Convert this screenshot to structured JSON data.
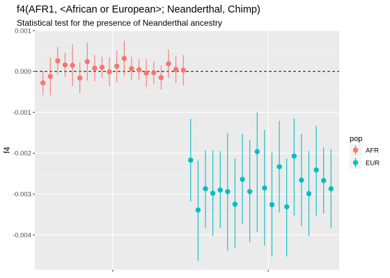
{
  "chart_data": {
    "type": "scatter",
    "title": "f4(AFR1, <African or European>; Neanderthal, Chimp)",
    "subtitle": "Statistical test for the presence of Neanderthal ancestry",
    "xlabel": "",
    "ylabel": "f4",
    "ylim": [
      -0.00485,
      0.001
    ],
    "y_ticks": [
      0.001,
      0.0,
      -0.001,
      -0.002,
      -0.003,
      -0.004
    ],
    "y_tick_labels": [
      "0.001",
      "0.000",
      "-0.001",
      "-0.002",
      "-0.003",
      "-0.004"
    ],
    "reference_line": {
      "y": 0,
      "style": "dashed"
    },
    "grid": true,
    "legend": {
      "title": "pop",
      "position": "right"
    },
    "series": [
      {
        "name": "AFR",
        "color": "#F8766D",
        "points": [
          {
            "y": -0.00028,
            "ymin": -0.00058,
            "ymax": 2e-05
          },
          {
            "y": -0.00012,
            "ymin": -0.00058,
            "ymax": 0.00034
          },
          {
            "y": 0.00026,
            "ymin": -8e-05,
            "ymax": 0.0006
          },
          {
            "y": 0.00016,
            "ymin": -0.00014,
            "ymax": 0.00046
          },
          {
            "y": 0.00015,
            "ymin": -0.00036,
            "ymax": 0.00066
          },
          {
            "y": -0.00016,
            "ymin": -0.00054,
            "ymax": 0.00022
          },
          {
            "y": 0.00024,
            "ymin": -0.00022,
            "ymax": 0.0007
          },
          {
            "y": 8e-05,
            "ymin": -0.00024,
            "ymax": 0.0004
          },
          {
            "y": 0.0001,
            "ymin": -0.00016,
            "ymax": 0.00036
          },
          {
            "y": -1e-05,
            "ymin": -0.00036,
            "ymax": 0.00034
          },
          {
            "y": 0.00013,
            "ymin": -0.00026,
            "ymax": 0.00052
          },
          {
            "y": 0.00032,
            "ymin": -0.00011,
            "ymax": 0.00075
          },
          {
            "y": 7e-05,
            "ymin": -0.00022,
            "ymax": 0.00036
          },
          {
            "y": 4e-05,
            "ymin": -0.00022,
            "ymax": 0.0003
          },
          {
            "y": -4e-05,
            "ymin": -0.00038,
            "ymax": 0.0003
          },
          {
            "y": -3e-05,
            "ymin": -0.0003,
            "ymax": 0.00024
          },
          {
            "y": -0.00015,
            "ymin": -0.00044,
            "ymax": 0.00014
          },
          {
            "y": 0.00019,
            "ymin": -0.00016,
            "ymax": 0.00054
          },
          {
            "y": 5e-05,
            "ymin": -0.00028,
            "ymax": 0.00038
          },
          {
            "y": 3e-05,
            "ymin": -0.00034,
            "ymax": 0.0004
          }
        ]
      },
      {
        "name": "EUR",
        "color": "#00BFC4",
        "points": [
          {
            "y": -0.00217,
            "ymin": -0.00318,
            "ymax": -0.00116
          },
          {
            "y": -0.00339,
            "ymin": -0.00463,
            "ymax": -0.00218
          },
          {
            "y": -0.00287,
            "ymin": -0.00383,
            "ymax": -0.00193
          },
          {
            "y": -0.00298,
            "ymin": -0.00403,
            "ymax": -0.00193
          },
          {
            "y": -0.0029,
            "ymin": -0.00383,
            "ymax": -0.00195
          },
          {
            "y": -0.00294,
            "ymin": -0.00438,
            "ymax": -0.0015
          },
          {
            "y": -0.00325,
            "ymin": -0.00433,
            "ymax": -0.00213
          },
          {
            "y": -0.00264,
            "ymin": -0.00373,
            "ymax": -0.00153
          },
          {
            "y": -0.00294,
            "ymin": -0.00418,
            "ymax": -0.00168
          },
          {
            "y": -0.00196,
            "ymin": -0.00393,
            "ymax": -0.001
          },
          {
            "y": -0.00285,
            "ymin": -0.00426,
            "ymax": -0.00143
          },
          {
            "y": -0.00326,
            "ymin": -0.00453,
            "ymax": -0.00198
          },
          {
            "y": -0.00233,
            "ymin": -0.00345,
            "ymax": -0.00121
          },
          {
            "y": -0.00331,
            "ymin": -0.00453,
            "ymax": -0.00213
          },
          {
            "y": -0.00207,
            "ymin": -0.00353,
            "ymax": -0.00115
          },
          {
            "y": -0.00266,
            "ymin": -0.00378,
            "ymax": -0.00153
          },
          {
            "y": -0.00299,
            "ymin": -0.00403,
            "ymax": -0.00195
          },
          {
            "y": -0.00241,
            "ymin": -0.00353,
            "ymax": -0.00133
          },
          {
            "y": -0.00267,
            "ymin": -0.00348,
            "ymax": -0.00186
          },
          {
            "y": -0.00287,
            "ymin": -0.00383,
            "ymax": -0.0019
          }
        ]
      }
    ]
  }
}
